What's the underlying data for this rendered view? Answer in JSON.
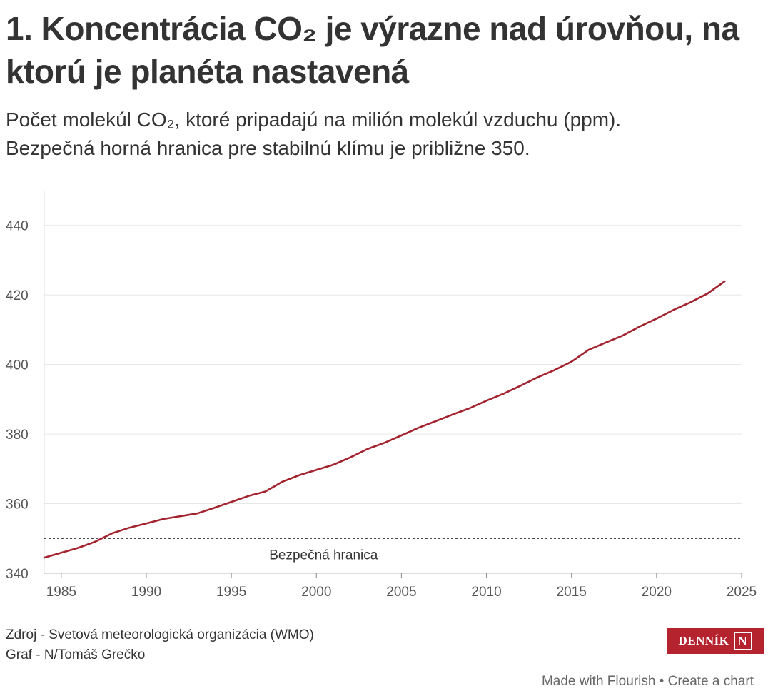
{
  "header": {
    "title": "1. Koncentrácia CO₂ je výrazne nad úrovňou, na ktorú je planéta nastavená",
    "subtitle_line1": "Počet molekúl CO₂, ktoré pripadajú na milión molekúl vzduchu (ppm).",
    "subtitle_line2": "Bezpečná horná hranica pre stabilnú klímu je približne 350."
  },
  "chart_data": {
    "type": "line",
    "xlim": [
      1984,
      2025
    ],
    "ylim": [
      340,
      450
    ],
    "x_ticks": [
      1985,
      1990,
      1995,
      2000,
      2005,
      2010,
      2015,
      2020,
      2025
    ],
    "y_ticks": [
      340,
      360,
      380,
      400,
      420,
      440
    ],
    "grid": true,
    "series": [
      {
        "color": "#a3232f",
        "x": [
          1984,
          1985,
          1986,
          1987,
          1988,
          1989,
          1990,
          1991,
          1992,
          1993,
          1994,
          1995,
          1996,
          1997,
          1998,
          1999,
          2000,
          2001,
          2002,
          2003,
          2004,
          2005,
          2006,
          2007,
          2008,
          2009,
          2010,
          2011,
          2012,
          2013,
          2014,
          2015,
          2016,
          2017,
          2018,
          2019,
          2020,
          2021,
          2022,
          2023,
          2024
        ],
        "values": [
          344.5,
          345.9,
          347.3,
          349.1,
          351.5,
          353.1,
          354.3,
          355.6,
          356.4,
          357.2,
          358.8,
          360.5,
          362.2,
          363.5,
          366.3,
          368.2,
          369.7,
          371.2,
          373.3,
          375.7,
          377.5,
          379.6,
          381.8,
          383.7,
          385.6,
          387.4,
          389.6,
          391.6,
          393.9,
          396.3,
          398.4,
          400.8,
          404.2,
          406.3,
          408.3,
          410.9,
          413.2,
          415.7,
          417.9,
          420.4,
          423.9
        ]
      }
    ],
    "reference_line": {
      "value": 350,
      "label": "Bezpečná hranica",
      "label_x": 2000
    }
  },
  "footer": {
    "source": "Zdroj - Svetová meteorologická organizácia (WMO)",
    "credit": "Graf - N/Tomáš Grečko",
    "logo_text": "DENNÍK",
    "logo_letter": "N",
    "flourish_text": "Made with Flourish • Create a chart"
  },
  "colors": {
    "line": "#a3232f",
    "logo_bg": "#b5232f",
    "grid": "#e6e6e6",
    "text": "#333333"
  }
}
